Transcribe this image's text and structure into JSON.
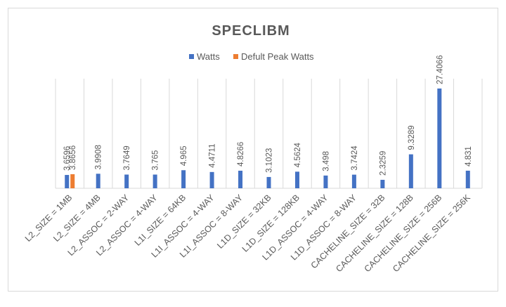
{
  "chart_data": {
    "type": "bar",
    "title": "SPECLIBM",
    "xlabel": "",
    "ylabel": "",
    "ylim": [
      0,
      30
    ],
    "grid": "vertical category separators",
    "legend_position": "top",
    "categories": [
      "L2_SIZE = 1MB",
      "L2_SIZE = 4MB",
      "L2_ASSOC = 2-WAY",
      "L2_ASSOC = 4-WAY",
      "L1I_SIZE = 64KB",
      "L1I_ASSOC = 4-WAY",
      "L1I_ASSOC = 8-WAY",
      "L1D_SIZE = 32KB",
      "L1D_SIZE = 128KB",
      "L1D_ASSOC = 4-WAY",
      "L1D_ASSOC = 8-WAY",
      "CACHELINE_SIZE = 32B",
      "CACHELINE_SIZE = 128B",
      "CACHELINE_SIZE = 256B",
      "CACHELINE_SIZE = 256K"
    ],
    "series": [
      {
        "name": "Watts",
        "color": "#4472c4",
        "values": [
          3.6596,
          3.9908,
          3.7649,
          3.765,
          4.965,
          4.4711,
          4.8266,
          3.1023,
          4.5624,
          3.498,
          3.7424,
          2.3259,
          9.3289,
          27.4066,
          4.831
        ],
        "labels": [
          "3.6596",
          "3.9908",
          "3.7649",
          "3.765",
          "4.965",
          "4.4711",
          "4.8266",
          "3.1023",
          "4.5624",
          "3.498",
          "3.7424",
          "2.3259",
          "9.3289",
          "27.4066",
          "4.831"
        ]
      },
      {
        "name": "Defult Peak Watts",
        "color": "#ed7d31",
        "values": [
          3.8656,
          null,
          null,
          null,
          null,
          null,
          null,
          null,
          null,
          null,
          null,
          null,
          null,
          null,
          null
        ],
        "labels": [
          "3.8656",
          null,
          null,
          null,
          null,
          null,
          null,
          null,
          null,
          null,
          null,
          null,
          null,
          null,
          null
        ]
      }
    ]
  }
}
